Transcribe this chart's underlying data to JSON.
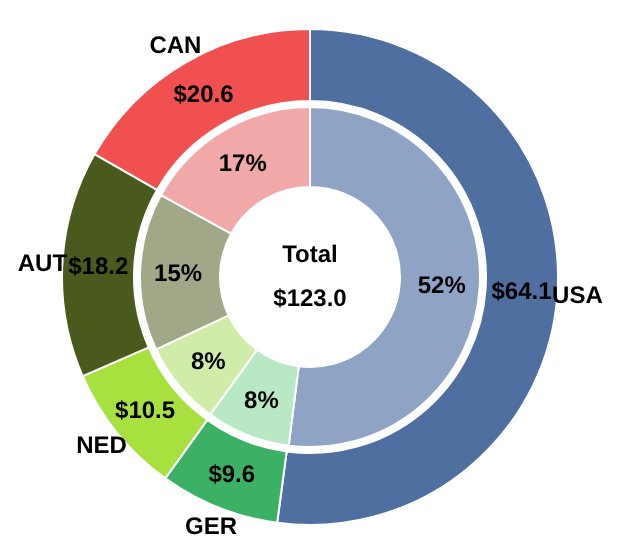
{
  "chart_data": {
    "type": "donut",
    "categories": [
      "USA",
      "GER",
      "NED",
      "AUT",
      "CAN"
    ],
    "series": [
      {
        "values": [
          52,
          8,
          8,
          15,
          17
        ],
        "value_labels": [
          "52%",
          "8%",
          "8%",
          "15%",
          "17%"
        ],
        "colors": [
          "#8fa4c4",
          "#b8e8c4",
          "#d0eca8",
          "#a0a888",
          "#f0a8a8"
        ]
      },
      {
        "values": [
          64.1,
          9.6,
          10.5,
          18.2,
          20.6
        ],
        "value_labels": [
          "$64.1",
          "$9.6",
          "$10.5",
          "$18.2",
          "$20.6"
        ],
        "colors": [
          "#4f6fa0",
          "#3cb064",
          "#a8e040",
          "#4a5a1c",
          "#f05050"
        ]
      }
    ],
    "annotations": [
      "Total",
      "$123.0"
    ]
  }
}
